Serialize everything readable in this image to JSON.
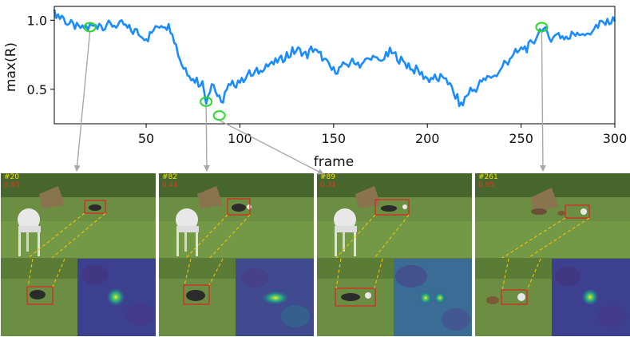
{
  "chart_data": {
    "type": "line",
    "xlabel": "frame",
    "ylabel": "max(R)",
    "xlim": [
      1,
      300
    ],
    "ylim": [
      0.25,
      1.1
    ],
    "xticks": [
      50,
      100,
      150,
      200,
      250,
      300
    ],
    "yticks": [
      0.5,
      1.0
    ],
    "ytick_labels": [
      "0.5",
      "1.0"
    ],
    "line_color": "#1a8cff",
    "marker_color": "#22dd22",
    "keypoints": [
      {
        "x": 1,
        "y": 1.04
      },
      {
        "x": 5,
        "y": 1.02
      },
      {
        "x": 10,
        "y": 0.97
      },
      {
        "x": 15,
        "y": 0.95
      },
      {
        "x": 20,
        "y": 0.95
      },
      {
        "x": 25,
        "y": 0.97
      },
      {
        "x": 30,
        "y": 0.96
      },
      {
        "x": 35,
        "y": 0.97
      },
      {
        "x": 40,
        "y": 0.95
      },
      {
        "x": 45,
        "y": 0.91
      },
      {
        "x": 50,
        "y": 0.87
      },
      {
        "x": 55,
        "y": 0.94
      },
      {
        "x": 60,
        "y": 0.97
      },
      {
        "x": 64,
        "y": 0.93
      },
      {
        "x": 67,
        "y": 0.75
      },
      {
        "x": 70,
        "y": 0.66
      },
      {
        "x": 75,
        "y": 0.58
      },
      {
        "x": 80,
        "y": 0.53
      },
      {
        "x": 82,
        "y": 0.43
      },
      {
        "x": 85,
        "y": 0.55
      },
      {
        "x": 88,
        "y": 0.45
      },
      {
        "x": 90,
        "y": 0.38
      },
      {
        "x": 92,
        "y": 0.48
      },
      {
        "x": 95,
        "y": 0.52
      },
      {
        "x": 100,
        "y": 0.56
      },
      {
        "x": 105,
        "y": 0.6
      },
      {
        "x": 110,
        "y": 0.62
      },
      {
        "x": 115,
        "y": 0.68
      },
      {
        "x": 120,
        "y": 0.7
      },
      {
        "x": 125,
        "y": 0.74
      },
      {
        "x": 130,
        "y": 0.78
      },
      {
        "x": 135,
        "y": 0.74
      },
      {
        "x": 140,
        "y": 0.8
      },
      {
        "x": 145,
        "y": 0.7
      },
      {
        "x": 150,
        "y": 0.64
      },
      {
        "x": 155,
        "y": 0.66
      },
      {
        "x": 160,
        "y": 0.7
      },
      {
        "x": 165,
        "y": 0.68
      },
      {
        "x": 170,
        "y": 0.73
      },
      {
        "x": 175,
        "y": 0.7
      },
      {
        "x": 180,
        "y": 0.77
      },
      {
        "x": 185,
        "y": 0.72
      },
      {
        "x": 190,
        "y": 0.67
      },
      {
        "x": 195,
        "y": 0.63
      },
      {
        "x": 200,
        "y": 0.58
      },
      {
        "x": 205,
        "y": 0.57
      },
      {
        "x": 210,
        "y": 0.58
      },
      {
        "x": 215,
        "y": 0.45
      },
      {
        "x": 218,
        "y": 0.38
      },
      {
        "x": 222,
        "y": 0.48
      },
      {
        "x": 228,
        "y": 0.54
      },
      {
        "x": 232,
        "y": 0.58
      },
      {
        "x": 238,
        "y": 0.62
      },
      {
        "x": 242,
        "y": 0.7
      },
      {
        "x": 247,
        "y": 0.76
      },
      {
        "x": 252,
        "y": 0.8
      },
      {
        "x": 256,
        "y": 0.82
      },
      {
        "x": 260,
        "y": 0.92
      },
      {
        "x": 261,
        "y": 0.95
      },
      {
        "x": 265,
        "y": 0.88
      },
      {
        "x": 270,
        "y": 0.9
      },
      {
        "x": 275,
        "y": 0.86
      },
      {
        "x": 280,
        "y": 0.93
      },
      {
        "x": 285,
        "y": 0.89
      },
      {
        "x": 290,
        "y": 0.95
      },
      {
        "x": 295,
        "y": 0.98
      },
      {
        "x": 300,
        "y": 1.02
      }
    ],
    "highlights": [
      {
        "frame": 20,
        "value": 0.95
      },
      {
        "frame": 82,
        "value": 0.41
      },
      {
        "frame": 89,
        "value": 0.31
      },
      {
        "frame": 261,
        "value": 0.95
      }
    ]
  },
  "panels": [
    {
      "frame_label": "#20",
      "score": "0.95"
    },
    {
      "frame_label": "#82",
      "score": "0.41"
    },
    {
      "frame_label": "#89",
      "score": "0.31"
    },
    {
      "frame_label": "#261",
      "score": "0.95"
    }
  ]
}
